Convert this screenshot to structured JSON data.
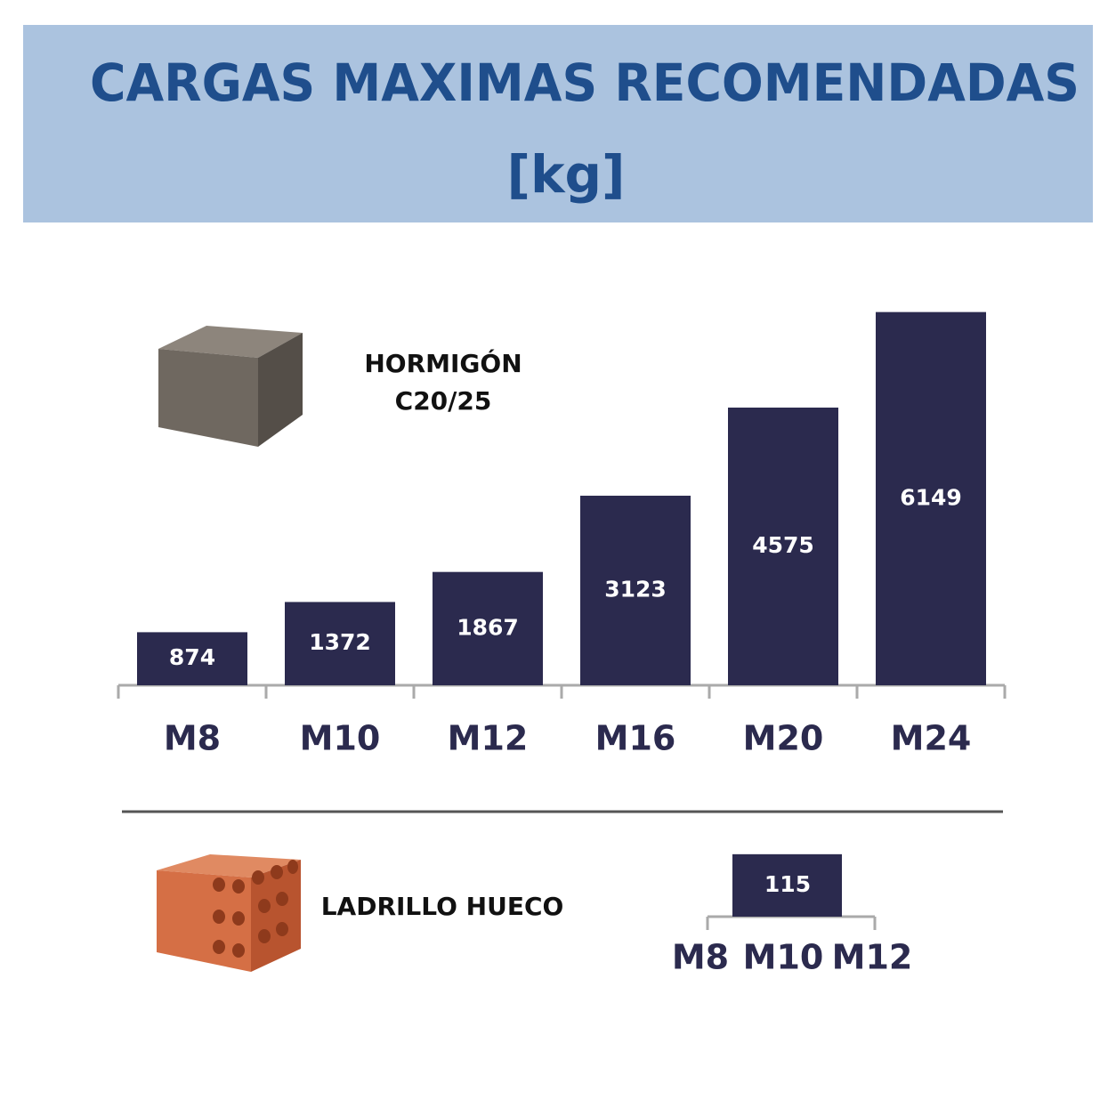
{
  "chart_data": [
    {
      "type": "bar",
      "title": "CARGAS MAXIMAS RECOMENDADAS",
      "subtitle": "[kg]",
      "material": [
        "HORMIGÓN",
        "C20/25"
      ],
      "categories": [
        "M8",
        "M10",
        "M12",
        "M16",
        "M20",
        "M24"
      ],
      "values": [
        874,
        1372,
        1867,
        3123,
        4575,
        6149
      ],
      "color": "#2b2a4e"
    },
    {
      "type": "span-bar",
      "material": [
        "LADRILLO HUECO"
      ],
      "categories": [
        "M8",
        "M10",
        "M12"
      ],
      "value": 115,
      "color": "#2b2a4e"
    }
  ]
}
